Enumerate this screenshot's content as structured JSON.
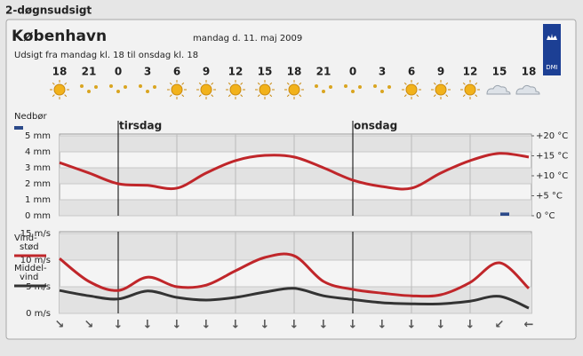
{
  "header": {
    "section": "2-døgnsudsigt",
    "city": "København",
    "date": "mandag d. 11. maj 2009",
    "subtitle": "Udsigt fra mandag kl. 18 til onsdag kl. 18",
    "logo": "DMI"
  },
  "hours": [
    "18",
    "21",
    "0",
    "3",
    "6",
    "9",
    "12",
    "15",
    "18",
    "21",
    "0",
    "3",
    "6",
    "9",
    "12",
    "15",
    "18"
  ],
  "days": [
    {
      "label": "tirsdag",
      "index": 2
    },
    {
      "label": "onsdag",
      "index": 10
    }
  ],
  "wind_directions": [
    "↘",
    "↘",
    "↓",
    "↓",
    "↓",
    "↓",
    "↓",
    "↓",
    "↓",
    "↓",
    "↓",
    "↓",
    "↓",
    "↓",
    "↓",
    "↙",
    "←"
  ],
  "chart_data": [
    {
      "type": "line",
      "ylim": [
        0,
        5
      ],
      "yticks": [
        {
          "value": 0,
          "label": "0 mm"
        },
        {
          "value": 1,
          "label": "1 mm"
        },
        {
          "value": 2,
          "label": "2 mm"
        },
        {
          "value": 3,
          "label": "3 mm"
        },
        {
          "value": 4,
          "label": "4 mm"
        },
        {
          "value": 5,
          "label": "5 mm"
        }
      ],
      "y2lim": [
        0,
        20
      ],
      "y2ticks": [
        {
          "value": 0,
          "label": "0 °C"
        },
        {
          "value": 5,
          "label": "+5 °C"
        },
        {
          "value": 10,
          "label": "+10 °C"
        },
        {
          "value": 15,
          "label": "+15 °C"
        },
        {
          "value": 20,
          "label": "+20 °C"
        }
      ],
      "series": [
        {
          "name": "Nedbør",
          "kind": "bar",
          "color": "#2c4a8a",
          "values": [
            0,
            0,
            0,
            0,
            0,
            0,
            0,
            0,
            0,
            0,
            0,
            0,
            0,
            0,
            0,
            0.2,
            0
          ]
        },
        {
          "kind": "line",
          "axis": "y2",
          "color": "#c0262a",
          "values": [
            13.3,
            10.7,
            8.0,
            7.6,
            6.9,
            10.7,
            13.8,
            15.1,
            14.7,
            12.0,
            8.9,
            7.3,
            6.9,
            10.7,
            13.8,
            15.6,
            14.7
          ]
        }
      ]
    },
    {
      "type": "line",
      "ylim": [
        0,
        15
      ],
      "yticks": [
        {
          "value": 0,
          "label": "0 m/s"
        },
        {
          "value": 5,
          "label": "5 m/s"
        },
        {
          "value": 10,
          "label": "10 m/s"
        },
        {
          "value": 15,
          "label": "15 m/s"
        }
      ],
      "series": [
        {
          "name_lines": [
            "Vind-",
            "stød"
          ],
          "kind": "line",
          "color": "#c0262a",
          "values": [
            10.3,
            6.0,
            4.3,
            6.8,
            5.0,
            5.3,
            8.0,
            10.5,
            10.8,
            6.0,
            4.5,
            3.8,
            3.3,
            3.5,
            5.8,
            9.5,
            4.7
          ]
        },
        {
          "name_lines": [
            "Middel-",
            "vind"
          ],
          "kind": "line",
          "color": "#333333",
          "values": [
            4.3,
            3.3,
            2.7,
            4.2,
            3.0,
            2.5,
            3.0,
            4.0,
            4.7,
            3.3,
            2.6,
            2.0,
            1.8,
            1.8,
            2.3,
            3.2,
            1.0
          ]
        }
      ]
    }
  ]
}
